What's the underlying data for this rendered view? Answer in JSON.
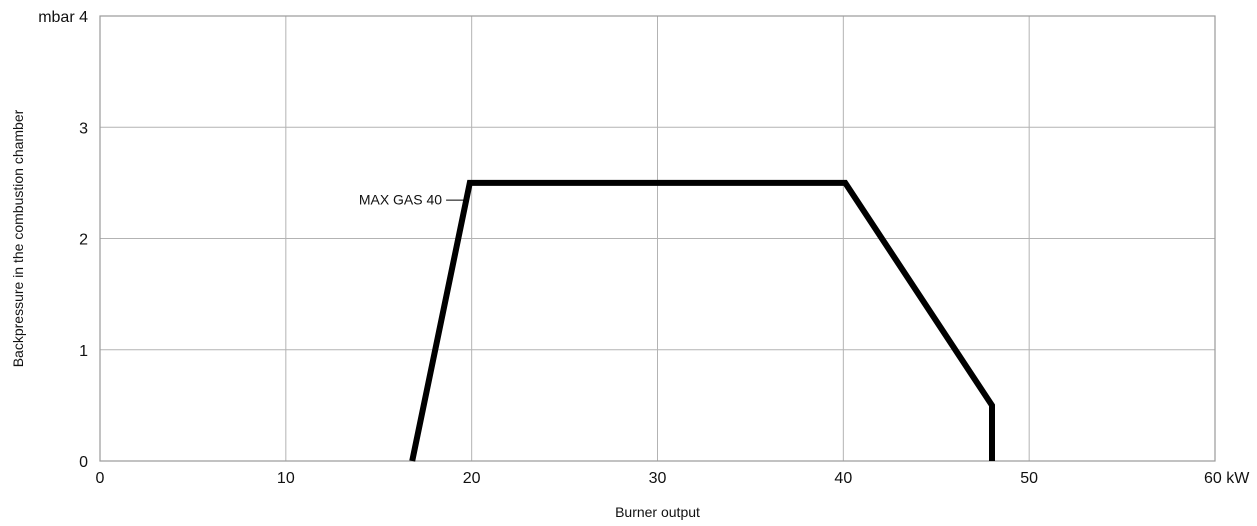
{
  "chart_data": {
    "type": "line",
    "title": "",
    "xlabel": "Burner output",
    "ylabel": "Backpressure in the combustion chamber",
    "x_unit": "kW",
    "y_unit": "mbar",
    "xlim": [
      0,
      60
    ],
    "ylim": [
      0,
      4
    ],
    "x_ticks": [
      0,
      10,
      20,
      30,
      40,
      50,
      60
    ],
    "y_ticks": [
      0,
      1,
      2,
      3,
      4
    ],
    "x_tick_labels": [
      "0",
      "10",
      "20",
      "30",
      "40",
      "50",
      "60 kW"
    ],
    "y_tick_labels": [
      "0",
      "1",
      "2",
      "3",
      "mbar 4"
    ],
    "grid": true,
    "series": [
      {
        "name": "MAX GAS 40",
        "color": "#000000",
        "x": [
          16.8,
          19.9,
          40.1,
          48.0,
          48.0
        ],
        "y": [
          0.0,
          2.5,
          2.5,
          0.5,
          0.0
        ]
      }
    ],
    "annotations": [
      {
        "text": "MAX GAS 40",
        "x": 19.7,
        "y": 2.35
      }
    ]
  }
}
